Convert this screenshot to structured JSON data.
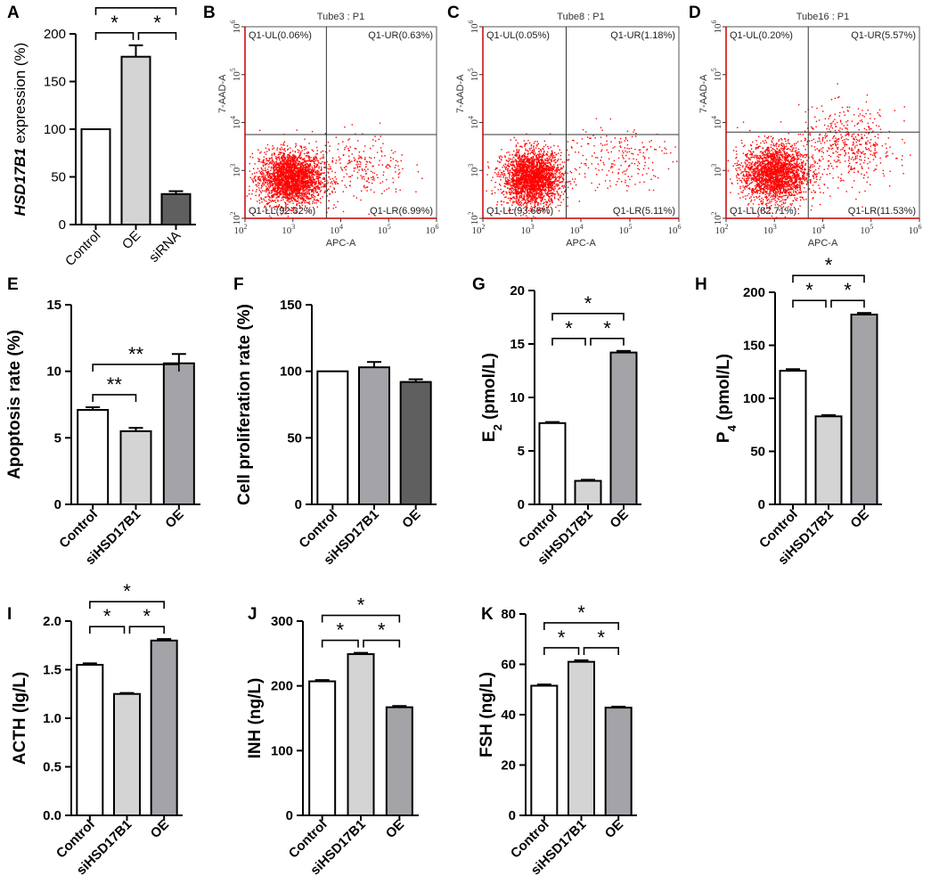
{
  "colors": {
    "white": "#ffffff",
    "light_gray": "#d4d4d4",
    "mid_gray": "#a3a3a8",
    "dark_gray": "#5f5f60",
    "dot_red": "#ff0000"
  },
  "chart_data": [
    {
      "id": "A",
      "type": "bar",
      "letter": "A",
      "categories": [
        "Control",
        "OE",
        "siRNA"
      ],
      "values": [
        100,
        176,
        32
      ],
      "errors": [
        0,
        12,
        3
      ],
      "fill_keys": [
        "white",
        "light_gray",
        "dark_gray"
      ],
      "ylim": [
        0,
        200
      ],
      "yticks": [
        "0",
        "50",
        "100",
        "150",
        "200"
      ],
      "ylabel_italic": "HSD17B1",
      "ylabel_rest": " expression (%)",
      "bold_labels": false,
      "sig": [
        {
          "from": 0,
          "to": 1,
          "mark": "*"
        },
        {
          "from": 1,
          "to": 2,
          "mark": "*"
        },
        {
          "from": 0,
          "to": 2,
          "mark": "*"
        }
      ]
    },
    {
      "id": "B",
      "type": "scatter",
      "letter": "B",
      "title": "Tube3 : P1",
      "quadrants": {
        "ul": "Q1-UL(0.06%)",
        "ur": "Q1-UR(0.63%)",
        "ll": "Q1-LL(92.32%)",
        "lr": "Q1-LR(6.99%)"
      },
      "xlabel": "APC-A",
      "ylabel": "7-AAD-A",
      "xticks": [
        "10",
        "10",
        "10",
        "10",
        "10"
      ],
      "xexp": [
        "2",
        "3",
        "4",
        "5",
        "6"
      ],
      "yticks": [
        "10",
        "10",
        "10",
        "10",
        "10"
      ],
      "yexp": [
        "2",
        "3",
        "4",
        "5",
        "6"
      ],
      "gate_x": 3.7,
      "gate_y": 3.75,
      "clusters": [
        {
          "n": 2600,
          "cx": 2.95,
          "cy": 2.85,
          "sx": 0.33,
          "sy": 0.28
        },
        {
          "n": 260,
          "cx": 4.4,
          "cy": 3.05,
          "sx": 0.5,
          "sy": 0.35
        }
      ]
    },
    {
      "id": "C",
      "type": "scatter",
      "letter": "C",
      "title": "Tube8 : P1",
      "quadrants": {
        "ul": "Q1-UL(0.05%)",
        "ur": "Q1-UR(1.18%)",
        "ll": "Q1-LL(93.66%)",
        "lr": "Q1-LR(5.11%)"
      },
      "xlabel": "APC-A",
      "ylabel": "7-AAD-A",
      "xticks": [
        "10",
        "10",
        "10",
        "10",
        "10"
      ],
      "xexp": [
        "2",
        "3",
        "4",
        "5",
        "6"
      ],
      "yticks": [
        "10",
        "10",
        "10",
        "10",
        "10"
      ],
      "yexp": [
        "2",
        "3",
        "4",
        "5",
        "6"
      ],
      "gate_x": 3.7,
      "gate_y": 3.75,
      "clusters": [
        {
          "n": 2500,
          "cx": 3.0,
          "cy": 2.85,
          "sx": 0.3,
          "sy": 0.28
        },
        {
          "n": 220,
          "cx": 4.7,
          "cy": 3.3,
          "sx": 0.6,
          "sy": 0.35
        }
      ]
    },
    {
      "id": "D",
      "type": "scatter",
      "letter": "D",
      "title": "Tube16 : P1",
      "quadrants": {
        "ul": "Q1-UL(0.20%)",
        "ur": "Q1-UR(5.57%)",
        "ll": "Q1-LL(82.71%)",
        "lr": "Q1-LR(11.53%)"
      },
      "xlabel": "APC-A",
      "ylabel": "7-AAD-A",
      "xticks": [
        "10",
        "10",
        "10",
        "10",
        "10"
      ],
      "xexp": [
        "2",
        "3",
        "4",
        "5",
        "6"
      ],
      "yticks": [
        "10",
        "10",
        "10",
        "10",
        "10"
      ],
      "yexp": [
        "2",
        "3",
        "4",
        "5",
        "6"
      ],
      "gate_x": 3.7,
      "gate_y": 3.8,
      "clusters": [
        {
          "n": 2300,
          "cx": 3.0,
          "cy": 2.95,
          "sx": 0.33,
          "sy": 0.3
        },
        {
          "n": 500,
          "cx": 4.5,
          "cy": 3.5,
          "sx": 0.5,
          "sy": 0.4
        }
      ]
    },
    {
      "id": "E",
      "type": "bar",
      "letter": "E",
      "categories": [
        "Control",
        "siHSD17B1",
        "OE"
      ],
      "values": [
        7.1,
        5.5,
        10.6
      ],
      "errors": [
        0.2,
        0.25,
        0.7
      ],
      "fill_keys": [
        "white",
        "light_gray",
        "mid_gray"
      ],
      "ylim": [
        0,
        15
      ],
      "yticks": [
        "0",
        "5",
        "10",
        "15"
      ],
      "ylabel": "Apoptosis rate (%)",
      "bold_labels": true,
      "sig": [
        {
          "from": 0,
          "to": 1,
          "mark": "**"
        },
        {
          "from": 0,
          "to": 2,
          "mark": "**"
        }
      ]
    },
    {
      "id": "F",
      "type": "bar",
      "letter": "F",
      "categories": [
        "Control",
        "siHSD17B1",
        "OE"
      ],
      "values": [
        100,
        103,
        92
      ],
      "errors": [
        0,
        4,
        2
      ],
      "fill_keys": [
        "white",
        "mid_gray",
        "dark_gray"
      ],
      "ylim": [
        0,
        150
      ],
      "yticks": [
        "0",
        "50",
        "100",
        "150"
      ],
      "ylabel": "Cell proliferation rate (%)",
      "bold_labels": true,
      "sig": []
    },
    {
      "id": "G",
      "type": "bar",
      "letter": "G",
      "categories": [
        "Control",
        "siHSD17B1",
        "OE"
      ],
      "values": [
        7.6,
        2.2,
        14.2
      ],
      "errors": [
        0.1,
        0.1,
        0.15
      ],
      "fill_keys": [
        "white",
        "light_gray",
        "mid_gray"
      ],
      "ylim": [
        0,
        20
      ],
      "yticks": [
        "0",
        "5",
        "10",
        "15",
        "20"
      ],
      "ylabel_main": "E",
      "ylabel_sub": "2",
      "ylabel_rest": " (pmol/L)",
      "bold_labels": true,
      "sig": [
        {
          "from": 0,
          "to": 1,
          "mark": "*"
        },
        {
          "from": 1,
          "to": 2,
          "mark": "*"
        },
        {
          "from": 0,
          "to": 2,
          "mark": "*"
        }
      ]
    },
    {
      "id": "H",
      "type": "bar",
      "letter": "H",
      "categories": [
        "Control",
        "siHSD17B1",
        "OE"
      ],
      "values": [
        126,
        83,
        179
      ],
      "errors": [
        1.5,
        1.2,
        1.5
      ],
      "fill_keys": [
        "white",
        "light_gray",
        "mid_gray"
      ],
      "ylim": [
        0,
        200
      ],
      "yticks": [
        "0",
        "50",
        "100",
        "150",
        "200"
      ],
      "ylabel_main": "P",
      "ylabel_sub": "4",
      "ylabel_rest": " (pmol/L)",
      "bold_labels": true,
      "sig": [
        {
          "from": 0,
          "to": 1,
          "mark": "*"
        },
        {
          "from": 1,
          "to": 2,
          "mark": "*"
        },
        {
          "from": 0,
          "to": 2,
          "mark": "*"
        }
      ]
    },
    {
      "id": "I",
      "type": "bar",
      "letter": "I",
      "categories": [
        "Control",
        "siHSD17B1",
        "OE"
      ],
      "values": [
        1.55,
        1.25,
        1.8
      ],
      "errors": [
        0.015,
        0.01,
        0.015
      ],
      "fill_keys": [
        "white",
        "light_gray",
        "mid_gray"
      ],
      "ylim": [
        0,
        2.0
      ],
      "yticks": [
        "0.0",
        "0.5",
        "1.0",
        "1.5",
        "2.0"
      ],
      "ylabel": "ACTH (lg/L)",
      "bold_labels": true,
      "sig": [
        {
          "from": 0,
          "to": 1,
          "mark": "*"
        },
        {
          "from": 1,
          "to": 2,
          "mark": "*"
        },
        {
          "from": 0,
          "to": 2,
          "mark": "*"
        }
      ]
    },
    {
      "id": "J",
      "type": "bar",
      "letter": "J",
      "categories": [
        "Control",
        "siHSD17B1",
        "OE"
      ],
      "values": [
        207,
        249,
        167
      ],
      "errors": [
        2,
        2,
        2
      ],
      "fill_keys": [
        "white",
        "light_gray",
        "mid_gray"
      ],
      "ylim": [
        0,
        300
      ],
      "yticks": [
        "0",
        "100",
        "200",
        "300"
      ],
      "ylabel": "INH (ng/L)",
      "bold_labels": true,
      "sig": [
        {
          "from": 0,
          "to": 1,
          "mark": "*"
        },
        {
          "from": 1,
          "to": 2,
          "mark": "*"
        },
        {
          "from": 0,
          "to": 2,
          "mark": "*"
        }
      ]
    },
    {
      "id": "K",
      "type": "bar",
      "letter": "K",
      "categories": [
        "Control",
        "siHSD17B1",
        "OE"
      ],
      "values": [
        51.5,
        61,
        42.8
      ],
      "errors": [
        0.5,
        0.6,
        0.4
      ],
      "fill_keys": [
        "white",
        "light_gray",
        "mid_gray"
      ],
      "ylim": [
        0,
        80
      ],
      "yticks": [
        "0",
        "20",
        "40",
        "60",
        "80"
      ],
      "ylabel": "FSH (ng/L)",
      "bold_labels": true,
      "sig": [
        {
          "from": 0,
          "to": 1,
          "mark": "*"
        },
        {
          "from": 1,
          "to": 2,
          "mark": "*"
        },
        {
          "from": 0,
          "to": 2,
          "mark": "*"
        }
      ]
    }
  ]
}
